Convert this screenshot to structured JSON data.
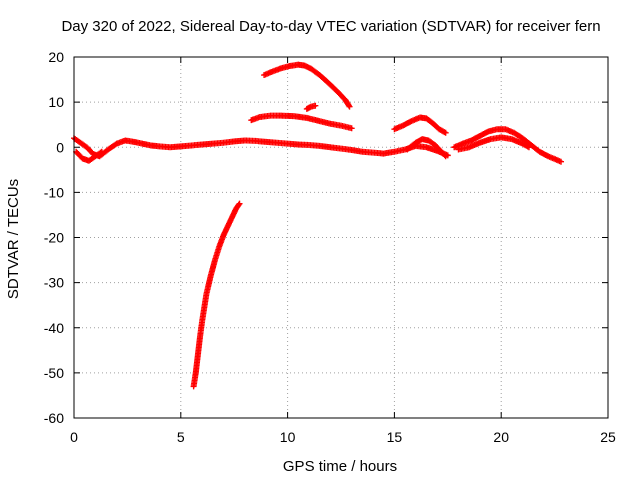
{
  "chart_data": {
    "type": "scatter",
    "title": "Day 320 of 2022, Sidereal Day-to-day VTEC variation (SDTVAR) for receiver fern",
    "xlabel": "GPS time / hours",
    "ylabel": "SDTVAR / TECUs",
    "xlim": [
      0,
      25
    ],
    "ylim": [
      -60,
      20
    ],
    "xticks": [
      "0",
      "5",
      "10",
      "15",
      "20",
      "25"
    ],
    "yticks": [
      "20",
      "10",
      "0",
      "-10",
      "-20",
      "-30",
      "-40",
      "-50",
      "-60"
    ],
    "grid": true,
    "marker": "+",
    "series_color": "#ff0000",
    "series": [
      {
        "name": "main-baseline",
        "x": [
          0.0,
          0.3,
          0.6,
          0.9,
          1.2,
          1.6,
          2.0,
          2.4,
          2.8,
          3.2,
          3.6,
          4.0,
          4.5,
          5.0,
          5.5,
          6.0,
          6.5,
          7.0,
          7.5,
          8.0,
          8.5,
          9.0,
          9.5,
          10.0,
          10.5,
          11.0,
          11.5,
          12.0,
          12.5,
          13.0,
          13.5,
          14.0,
          14.5,
          15.0,
          15.5,
          16.0,
          16.5,
          17.0,
          17.5
        ],
        "y": [
          2.0,
          1.0,
          0.0,
          -1.5,
          -2.0,
          -0.5,
          0.8,
          1.5,
          1.2,
          0.8,
          0.4,
          0.2,
          0.0,
          0.2,
          0.4,
          0.6,
          0.8,
          1.0,
          1.3,
          1.5,
          1.4,
          1.2,
          1.0,
          0.8,
          0.6,
          0.5,
          0.3,
          0.0,
          -0.3,
          -0.6,
          -1.0,
          -1.2,
          -1.4,
          -1.0,
          -0.5,
          0.3,
          0.0,
          -0.8,
          -1.8
        ]
      },
      {
        "name": "dip-start",
        "x": [
          0.1,
          0.4,
          0.7,
          1.0,
          1.3
        ],
        "y": [
          -1.0,
          -2.5,
          -3.0,
          -2.0,
          -1.0
        ]
      },
      {
        "name": "steep-rise",
        "x": [
          5.6,
          5.7,
          5.8,
          5.9,
          6.0,
          6.1,
          6.2,
          6.4,
          6.6,
          6.8,
          7.0,
          7.2,
          7.4,
          7.6,
          7.75
        ],
        "y": [
          -53.0,
          -50.0,
          -46.0,
          -42.0,
          -38.5,
          -35.5,
          -32.5,
          -28.5,
          -25.0,
          -22.0,
          -19.5,
          -17.5,
          -15.5,
          -13.5,
          -12.5
        ]
      },
      {
        "name": "upper-arc",
        "x": [
          8.9,
          9.3,
          9.7,
          10.1,
          10.5,
          10.8,
          11.1,
          11.5,
          11.9,
          12.3,
          12.7,
          12.9
        ],
        "y": [
          16.0,
          16.8,
          17.5,
          18.0,
          18.3,
          18.1,
          17.4,
          16.0,
          14.3,
          12.5,
          10.5,
          9.0
        ]
      },
      {
        "name": "short-segment",
        "x": [
          10.9,
          11.1,
          11.3
        ],
        "y": [
          8.5,
          9.0,
          9.2
        ]
      },
      {
        "name": "mid-band",
        "x": [
          8.3,
          8.7,
          9.2,
          9.7,
          10.3,
          10.9,
          11.5,
          12.0,
          12.5,
          13.0
        ],
        "y": [
          6.0,
          6.7,
          7.0,
          7.0,
          6.9,
          6.5,
          5.8,
          5.2,
          4.8,
          4.2
        ]
      },
      {
        "name": "hump-upper",
        "x": [
          15.0,
          15.4,
          15.8,
          16.2,
          16.5,
          16.8,
          17.1,
          17.4
        ],
        "y": [
          4.0,
          4.8,
          5.8,
          6.6,
          6.4,
          5.3,
          4.0,
          3.2
        ]
      },
      {
        "name": "hump-lower",
        "x": [
          15.6,
          16.0,
          16.3,
          16.6,
          16.9,
          17.2,
          17.4
        ],
        "y": [
          -0.5,
          1.0,
          1.8,
          1.5,
          0.5,
          -1.0,
          -2.0
        ]
      },
      {
        "name": "late-arc",
        "x": [
          17.8,
          18.2,
          18.6,
          19.0,
          19.4,
          19.8,
          20.2,
          20.6,
          21.0,
          21.4,
          21.8,
          22.2,
          22.6,
          22.8
        ],
        "y": [
          0.0,
          0.8,
          1.5,
          2.5,
          3.5,
          4.0,
          4.0,
          3.2,
          2.0,
          0.5,
          -1.0,
          -2.0,
          -2.8,
          -3.2
        ]
      },
      {
        "name": "late-lower",
        "x": [
          18.0,
          18.5,
          19.0,
          19.5,
          20.0,
          20.5,
          21.0,
          21.3
        ],
        "y": [
          -0.5,
          0.0,
          1.0,
          1.8,
          2.2,
          1.8,
          0.8,
          0.0
        ]
      }
    ]
  }
}
